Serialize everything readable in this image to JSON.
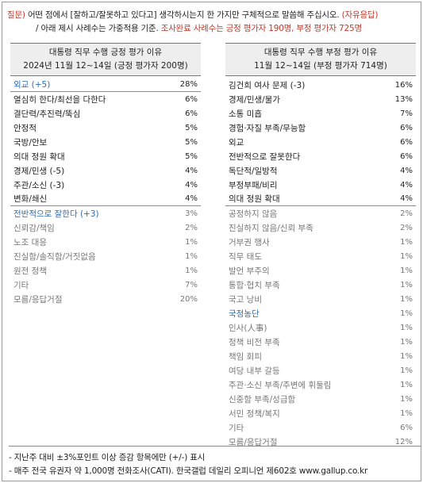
{
  "question": {
    "prefix": "질문)",
    "text1": "어떤 점에서 [잘하고/잘못하고 있다고] 생각하시는지 한 가지만 구체적으로 말씀해 주십시오.",
    "tag": "(자유응답)",
    "text2": "/ 아래 제시 사례수는 가중적용 기준.",
    "text2_red": "조사완료 사례수는 긍정 평가자 190명, 부정 평가자 725명"
  },
  "left_table": {
    "title": "대통령 직무 수행 긍정 평가 이유",
    "subtitle": "2024년 11월 12~14일 (긍정 평가자 200명)",
    "rows": [
      {
        "label": "외교 (+5)",
        "value": "28%",
        "style": "blue sep"
      },
      {
        "label": "열심히 한다/최선을 다한다",
        "value": "6%",
        "style": ""
      },
      {
        "label": "결단력/추진력/뚝심",
        "value": "6%",
        "style": ""
      },
      {
        "label": "안정적",
        "value": "5%",
        "style": ""
      },
      {
        "label": "국방/안보",
        "value": "5%",
        "style": ""
      },
      {
        "label": "의대 정원 확대",
        "value": "5%",
        "style": ""
      },
      {
        "label": "경제/민생 (-5)",
        "value": "4%",
        "style": ""
      },
      {
        "label": "주관/소신 (-3)",
        "value": "4%",
        "style": ""
      },
      {
        "label": "변화/쇄신",
        "value": "4%",
        "style": "sep"
      },
      {
        "label": "전반적으로 잘한다 (+3)",
        "value": "3%",
        "style": "blue grey"
      },
      {
        "label": "신뢰감/책임",
        "value": "2%",
        "style": "grey"
      },
      {
        "label": "노조 대응",
        "value": "1%",
        "style": "grey"
      },
      {
        "label": "진실함/솔직함/거짓없음",
        "value": "1%",
        "style": "grey"
      },
      {
        "label": "원전 정책",
        "value": "1%",
        "style": "grey"
      },
      {
        "label": "기타",
        "value": "7%",
        "style": "grey"
      },
      {
        "label": "모름/응답거절",
        "value": "20%",
        "style": "grey"
      }
    ]
  },
  "right_table": {
    "title": "대통령 직무 수행 부정 평가 이유",
    "subtitle": "11월 12~14일 (부정 평가자 714명)",
    "rows": [
      {
        "label": "김건희 여사 문제 (-3)",
        "value": "16%",
        "style": ""
      },
      {
        "label": "경제/민생/물가",
        "value": "13%",
        "style": ""
      },
      {
        "label": "소통 미흡",
        "value": "7%",
        "style": ""
      },
      {
        "label": "경험·자질 부족/무능함",
        "value": "6%",
        "style": ""
      },
      {
        "label": "외교",
        "value": "6%",
        "style": ""
      },
      {
        "label": "전반적으로 잘못한다",
        "value": "6%",
        "style": ""
      },
      {
        "label": "독단적/일방적",
        "value": "4%",
        "style": ""
      },
      {
        "label": "부정부패/비리",
        "value": "4%",
        "style": ""
      },
      {
        "label": "의대 정원 확대",
        "value": "4%",
        "style": "sep"
      },
      {
        "label": "공정하지 않음",
        "value": "2%",
        "style": "grey"
      },
      {
        "label": "진실하지 않음/신뢰 부족",
        "value": "2%",
        "style": "grey"
      },
      {
        "label": "거부권 행사",
        "value": "1%",
        "style": "grey"
      },
      {
        "label": "직무 태도",
        "value": "1%",
        "style": "grey"
      },
      {
        "label": "발언 부주의",
        "value": "1%",
        "style": "grey"
      },
      {
        "label": "통합·협치 부족",
        "value": "1%",
        "style": "grey"
      },
      {
        "label": "국고 낭비",
        "value": "1%",
        "style": "grey"
      },
      {
        "label": "국정농단",
        "value": "1%",
        "style": "blue grey"
      },
      {
        "label": "인사(人事)",
        "value": "1%",
        "style": "grey"
      },
      {
        "label": "정책 비전 부족",
        "value": "1%",
        "style": "grey"
      },
      {
        "label": "책임 회피",
        "value": "1%",
        "style": "grey"
      },
      {
        "label": "여당 내부 갈등",
        "value": "1%",
        "style": "grey"
      },
      {
        "label": "주관·소신 부족/주변에 휘둘림",
        "value": "1%",
        "style": "grey"
      },
      {
        "label": "신중함 부족/성급함",
        "value": "1%",
        "style": "grey"
      },
      {
        "label": "서민 정책/복지",
        "value": "1%",
        "style": "grey"
      },
      {
        "label": "기타",
        "value": "6%",
        "style": "grey"
      },
      {
        "label": "모름/응답거절",
        "value": "12%",
        "style": "grey"
      }
    ]
  },
  "footer": {
    "note1": "- 지난주 대비 ±3%포인트 이상 증감 항목에만 (+/-) 표시",
    "note2": "- 매주 전국 유권자 약 1,000명 전화조사(CATI). 한국갤럽 데일리 오피니언 제602호 www.gallup.co.kr"
  }
}
